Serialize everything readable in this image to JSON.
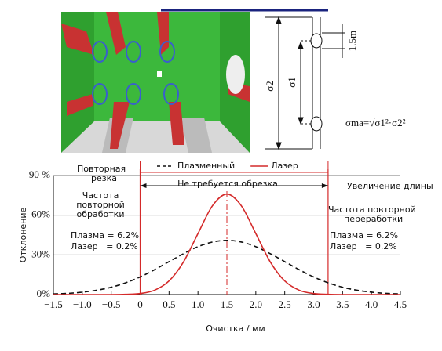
{
  "diagram": {
    "sigma2": "σ2",
    "sigma1": "σ1",
    "distance": "1.5m",
    "formula": "σma=√σ1²·σ2²"
  },
  "chart_data": {
    "type": "line",
    "x_label": "Очистка / мм",
    "y_label": "Отклонение",
    "x": [
      -1.5,
      -1.25,
      -1,
      -0.75,
      -0.5,
      -0.25,
      0,
      0.25,
      0.5,
      0.75,
      1,
      1.25,
      1.5,
      1.75,
      2,
      2.25,
      2.5,
      2.75,
      3,
      3.25,
      3.5,
      3.75,
      4,
      4.25,
      4.5
    ],
    "series": [
      {
        "name": "Плазменный",
        "color": "#111111",
        "dash": true,
        "values": [
          0.5,
          0.9,
          1.8,
          3.3,
          5.5,
          8.9,
          13.3,
          18.8,
          24.9,
          30.9,
          36.2,
          39.7,
          41,
          39.7,
          36.2,
          30.9,
          24.9,
          18.8,
          13.3,
          8.9,
          5.5,
          3.3,
          1.8,
          0.9,
          0.5
        ]
      },
      {
        "name": "Лазер",
        "color": "#d42a2a",
        "dash": false,
        "values": [
          0,
          0,
          0,
          0,
          0,
          0.2,
          0.8,
          3.3,
          10.3,
          24.7,
          46.1,
          67.1,
          76,
          67.1,
          46.1,
          24.7,
          10.3,
          3.3,
          0.8,
          0.2,
          0,
          0,
          0,
          0,
          0
        ]
      }
    ],
    "xlim": [
      -1.5,
      4.5
    ],
    "xticks": [
      {
        "value": -1.5,
        "label": "−1.5"
      },
      {
        "value": -1,
        "label": "−1.0"
      },
      {
        "value": -0.5,
        "label": "−0.5"
      },
      0,
      0.5,
      {
        "value": 1,
        "label": "1.0"
      },
      1.5,
      {
        "value": 2,
        "label": "2.0"
      },
      2.5,
      {
        "value": 3,
        "label": "3.0"
      },
      3.5,
      {
        "value": 4,
        "label": "4.0"
      },
      4.5
    ],
    "ylim": [
      0,
      90
    ],
    "yticks": [
      {
        "value": 0,
        "label": "0%"
      },
      {
        "value": 30,
        "label": "30%"
      },
      {
        "value": 60,
        "label": "60%"
      },
      {
        "value": 90,
        "label": "90 %"
      }
    ],
    "grid": true,
    "legend": "top",
    "vlines": [
      0,
      3.25
    ],
    "center_line": 1.5,
    "annotations": {
      "recut": [
        "Повторная",
        "резка"
      ],
      "no_trim": "Не требуется обрезка",
      "length_increase": "Увеличение длины",
      "left_freq": [
        "Частота",
        "повторной",
        "обработки"
      ],
      "right_freq": [
        "Частота повторной",
        "переработки"
      ],
      "left_stats": [
        "Плазма = 6.2%",
        "Лазер   = 0.2%"
      ],
      "right_stats": [
        "Плазма = 6.2%",
        "Лазер   = 0.2%"
      ]
    }
  }
}
